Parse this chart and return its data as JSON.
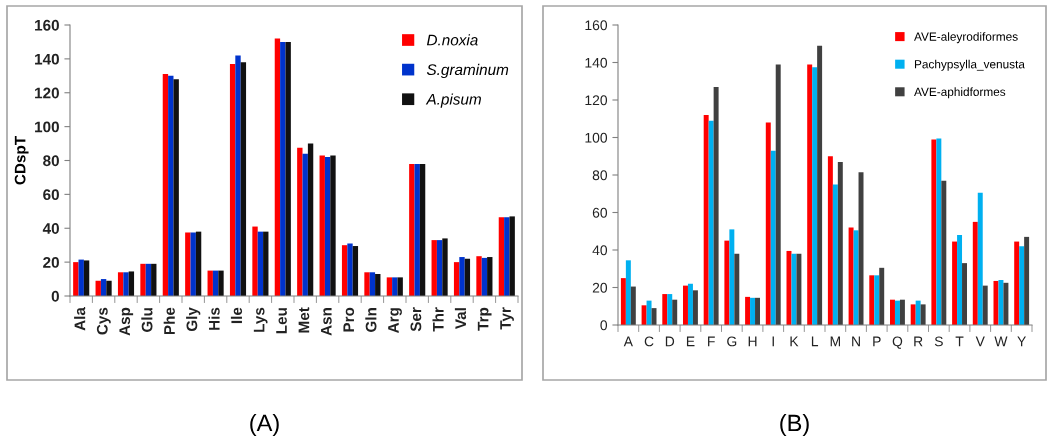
{
  "chart_data": [
    {
      "type": "bar",
      "title": "(A)",
      "ylabel": "CDspT",
      "categories": [
        "Ala",
        "Cys",
        "Asp",
        "Glu",
        "Phe",
        "Gly",
        "His",
        "Ile",
        "Lys",
        "Leu",
        "Met",
        "Asn",
        "Pro",
        "Gln",
        "Arg",
        "Ser",
        "Thr",
        "Val",
        "Trp",
        "Tyr"
      ],
      "series": [
        {
          "name": "D.noxia",
          "color": "#ff0000",
          "values": [
            20,
            9,
            14,
            19,
            131,
            37.5,
            15,
            137,
            41,
            152,
            87.5,
            83,
            30,
            14,
            11,
            78,
            33,
            20,
            23.5,
            46.5
          ]
        },
        {
          "name": "S.graminum",
          "color": "#0033cc",
          "values": [
            21.5,
            10,
            14,
            19,
            130,
            37.5,
            15,
            142,
            38,
            150,
            84,
            82,
            31,
            14,
            11,
            78,
            33,
            23,
            22.5,
            46.5
          ]
        },
        {
          "name": "A.pisum",
          "color": "#111111",
          "values": [
            21,
            9,
            14.5,
            19,
            128,
            38,
            15,
            138,
            38,
            150,
            90,
            83,
            29.5,
            13,
            11,
            78,
            34,
            22,
            23,
            47
          ]
        }
      ],
      "ylim": [
        0,
        160
      ],
      "yticks": [
        0,
        20,
        40,
        60,
        80,
        100,
        120,
        140,
        160
      ],
      "grid": false,
      "legend": "top right"
    },
    {
      "type": "bar",
      "title": "(B)",
      "categories": [
        "A",
        "C",
        "D",
        "E",
        "F",
        "G",
        "H",
        "I",
        "K",
        "L",
        "M",
        "N",
        "P",
        "Q",
        "R",
        "S",
        "T",
        "V",
        "W",
        "Y"
      ],
      "series": [
        {
          "name": "AVE-aleyrodiformes",
          "color": "#ff0000",
          "values": [
            25,
            10.5,
            16.5,
            21,
            112,
            45,
            15,
            108,
            39.5,
            139,
            90,
            52,
            26.5,
            13.5,
            11,
            99,
            44.5,
            55,
            23.5,
            44.5
          ]
        },
        {
          "name": "Pachypsylla_venusta",
          "color": "#00b0f0",
          "values": [
            34.5,
            13,
            16.5,
            22,
            109,
            51,
            14.5,
            93,
            38,
            137.5,
            75,
            50.5,
            26.5,
            13,
            13,
            99.5,
            48,
            70.5,
            24,
            42
          ]
        },
        {
          "name": "AVE-aphidformes",
          "color": "#404040",
          "values": [
            20.5,
            9,
            13.5,
            18.5,
            127,
            38,
            14.5,
            139,
            38,
            149,
            87,
            81.5,
            30.5,
            13.5,
            11,
            77,
            33,
            21,
            22.5,
            47
          ]
        }
      ],
      "ylim": [
        0,
        160
      ],
      "yticks": [
        0,
        20,
        40,
        60,
        80,
        100,
        120,
        140,
        160
      ],
      "grid": false,
      "legend": "top right"
    }
  ]
}
